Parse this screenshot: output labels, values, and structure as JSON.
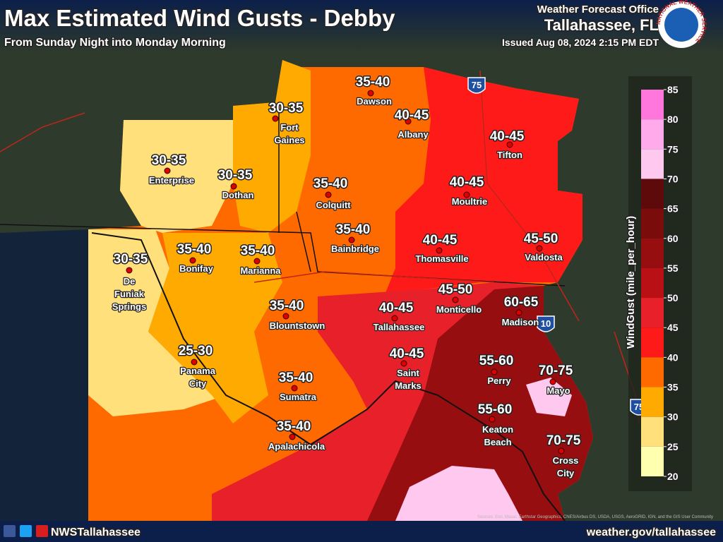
{
  "header": {
    "title": "Max Estimated Wind Gusts - Debby",
    "subtitle": "From Sunday Night into Monday Morning",
    "office": "Weather Forecast Office",
    "location": "Tallahassee, FL",
    "issued": "Issued Aug 08, 2024 2:15 PM EDT",
    "logo_text": "NATIONAL WEATHER SERVICE"
  },
  "legend": {
    "title": "WindGust (mile_per_hour)",
    "ticks": [
      85,
      80,
      75,
      70,
      65,
      60,
      55,
      50,
      45,
      40,
      35,
      30,
      25,
      20
    ],
    "colors": [
      "#ff77dd",
      "#ffaaea",
      "#ffc8ee",
      "#5e0a0a",
      "#7a0c0c",
      "#960e10",
      "#b81014",
      "#e8202a",
      "#ff1a1a",
      "#ff6a00",
      "#ffaa00",
      "#ffe07a",
      "#ffffb0"
    ]
  },
  "cities": [
    {
      "range": "35-40",
      "name": [
        "Dawson"
      ]
    },
    {
      "range": "30-35",
      "name": [
        "Fort",
        "Gaines"
      ]
    },
    {
      "range": "40-45",
      "name": [
        "Albany"
      ]
    },
    {
      "range": "30-35",
      "name": [
        "Enterprise"
      ]
    },
    {
      "range": "30-35",
      "name": [
        "Dothan"
      ]
    },
    {
      "range": "40-45",
      "name": [
        "Tifton"
      ]
    },
    {
      "range": "35-40",
      "name": [
        "Colquitt"
      ]
    },
    {
      "range": "40-45",
      "name": [
        "Moultrie"
      ]
    },
    {
      "range": "35-40",
      "name": [
        "Bainbridge"
      ]
    },
    {
      "range": "40-45",
      "name": [
        "Thomasville"
      ]
    },
    {
      "range": "45-50",
      "name": [
        "Valdosta"
      ]
    },
    {
      "range": "30-35",
      "name": [
        "De",
        "Funiak",
        "Springs"
      ]
    },
    {
      "range": "35-40",
      "name": [
        "Bonifay"
      ]
    },
    {
      "range": "35-40",
      "name": [
        "Marianna"
      ]
    },
    {
      "range": "35-40",
      "name": [
        "Blountstown"
      ]
    },
    {
      "range": "40-45",
      "name": [
        "Tallahassee"
      ]
    },
    {
      "range": "45-50",
      "name": [
        "Monticello"
      ]
    },
    {
      "range": "60-65",
      "name": [
        "Madison"
      ]
    },
    {
      "range": "25-30",
      "name": [
        "Panama",
        "City"
      ]
    },
    {
      "range": "40-45",
      "name": [
        "Saint",
        "Marks"
      ]
    },
    {
      "range": "35-40",
      "name": [
        "Sumatra"
      ]
    },
    {
      "range": "55-60",
      "name": [
        "Perry"
      ]
    },
    {
      "range": "70-75",
      "name": [
        "Mayo"
      ]
    },
    {
      "range": "55-60",
      "name": [
        "Keaton",
        "Beach"
      ]
    },
    {
      "range": "35-40",
      "name": [
        "Apalachicola"
      ]
    },
    {
      "range": "70-75",
      "name": [
        "Cross",
        "City"
      ]
    }
  ],
  "shields": [
    "75",
    "10",
    "75"
  ],
  "footer": {
    "social": "NWSTallahassee",
    "url": "weather.gov/tallahassee",
    "attribution": "Sources: Esri, Maxar, Earthstar Geographics, CNES/Airbus DS, USDA, USGS, AeroGRID, IGN, and the GIS User Community"
  }
}
